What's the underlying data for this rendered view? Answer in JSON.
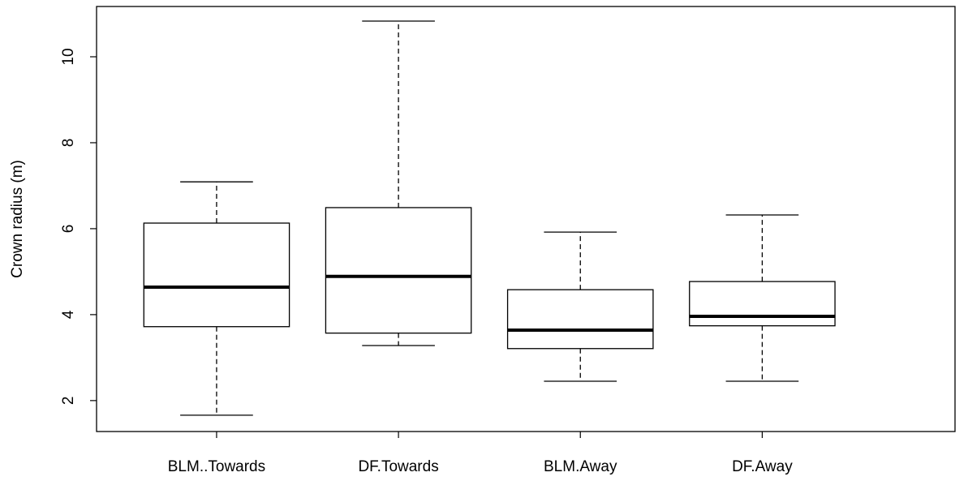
{
  "chart_data": {
    "type": "boxplot",
    "y_label": "Crown radius (m)",
    "categories": [
      "BLM..Towards",
      "DF.Towards",
      "BLM.Away",
      "DF.Away"
    ],
    "min": [
      1.66,
      3.28,
      2.45,
      2.45
    ],
    "q1": [
      3.72,
      3.57,
      3.21,
      3.74
    ],
    "median": [
      4.64,
      4.89,
      3.64,
      3.96
    ],
    "q3": [
      6.13,
      6.49,
      4.58,
      4.77
    ],
    "max": [
      7.09,
      10.83,
      5.92,
      6.32
    ],
    "color": "#ffffff",
    "ylim": [
      1.28,
      11.17
    ],
    "yticks": [
      2,
      4,
      6,
      8,
      10
    ]
  }
}
